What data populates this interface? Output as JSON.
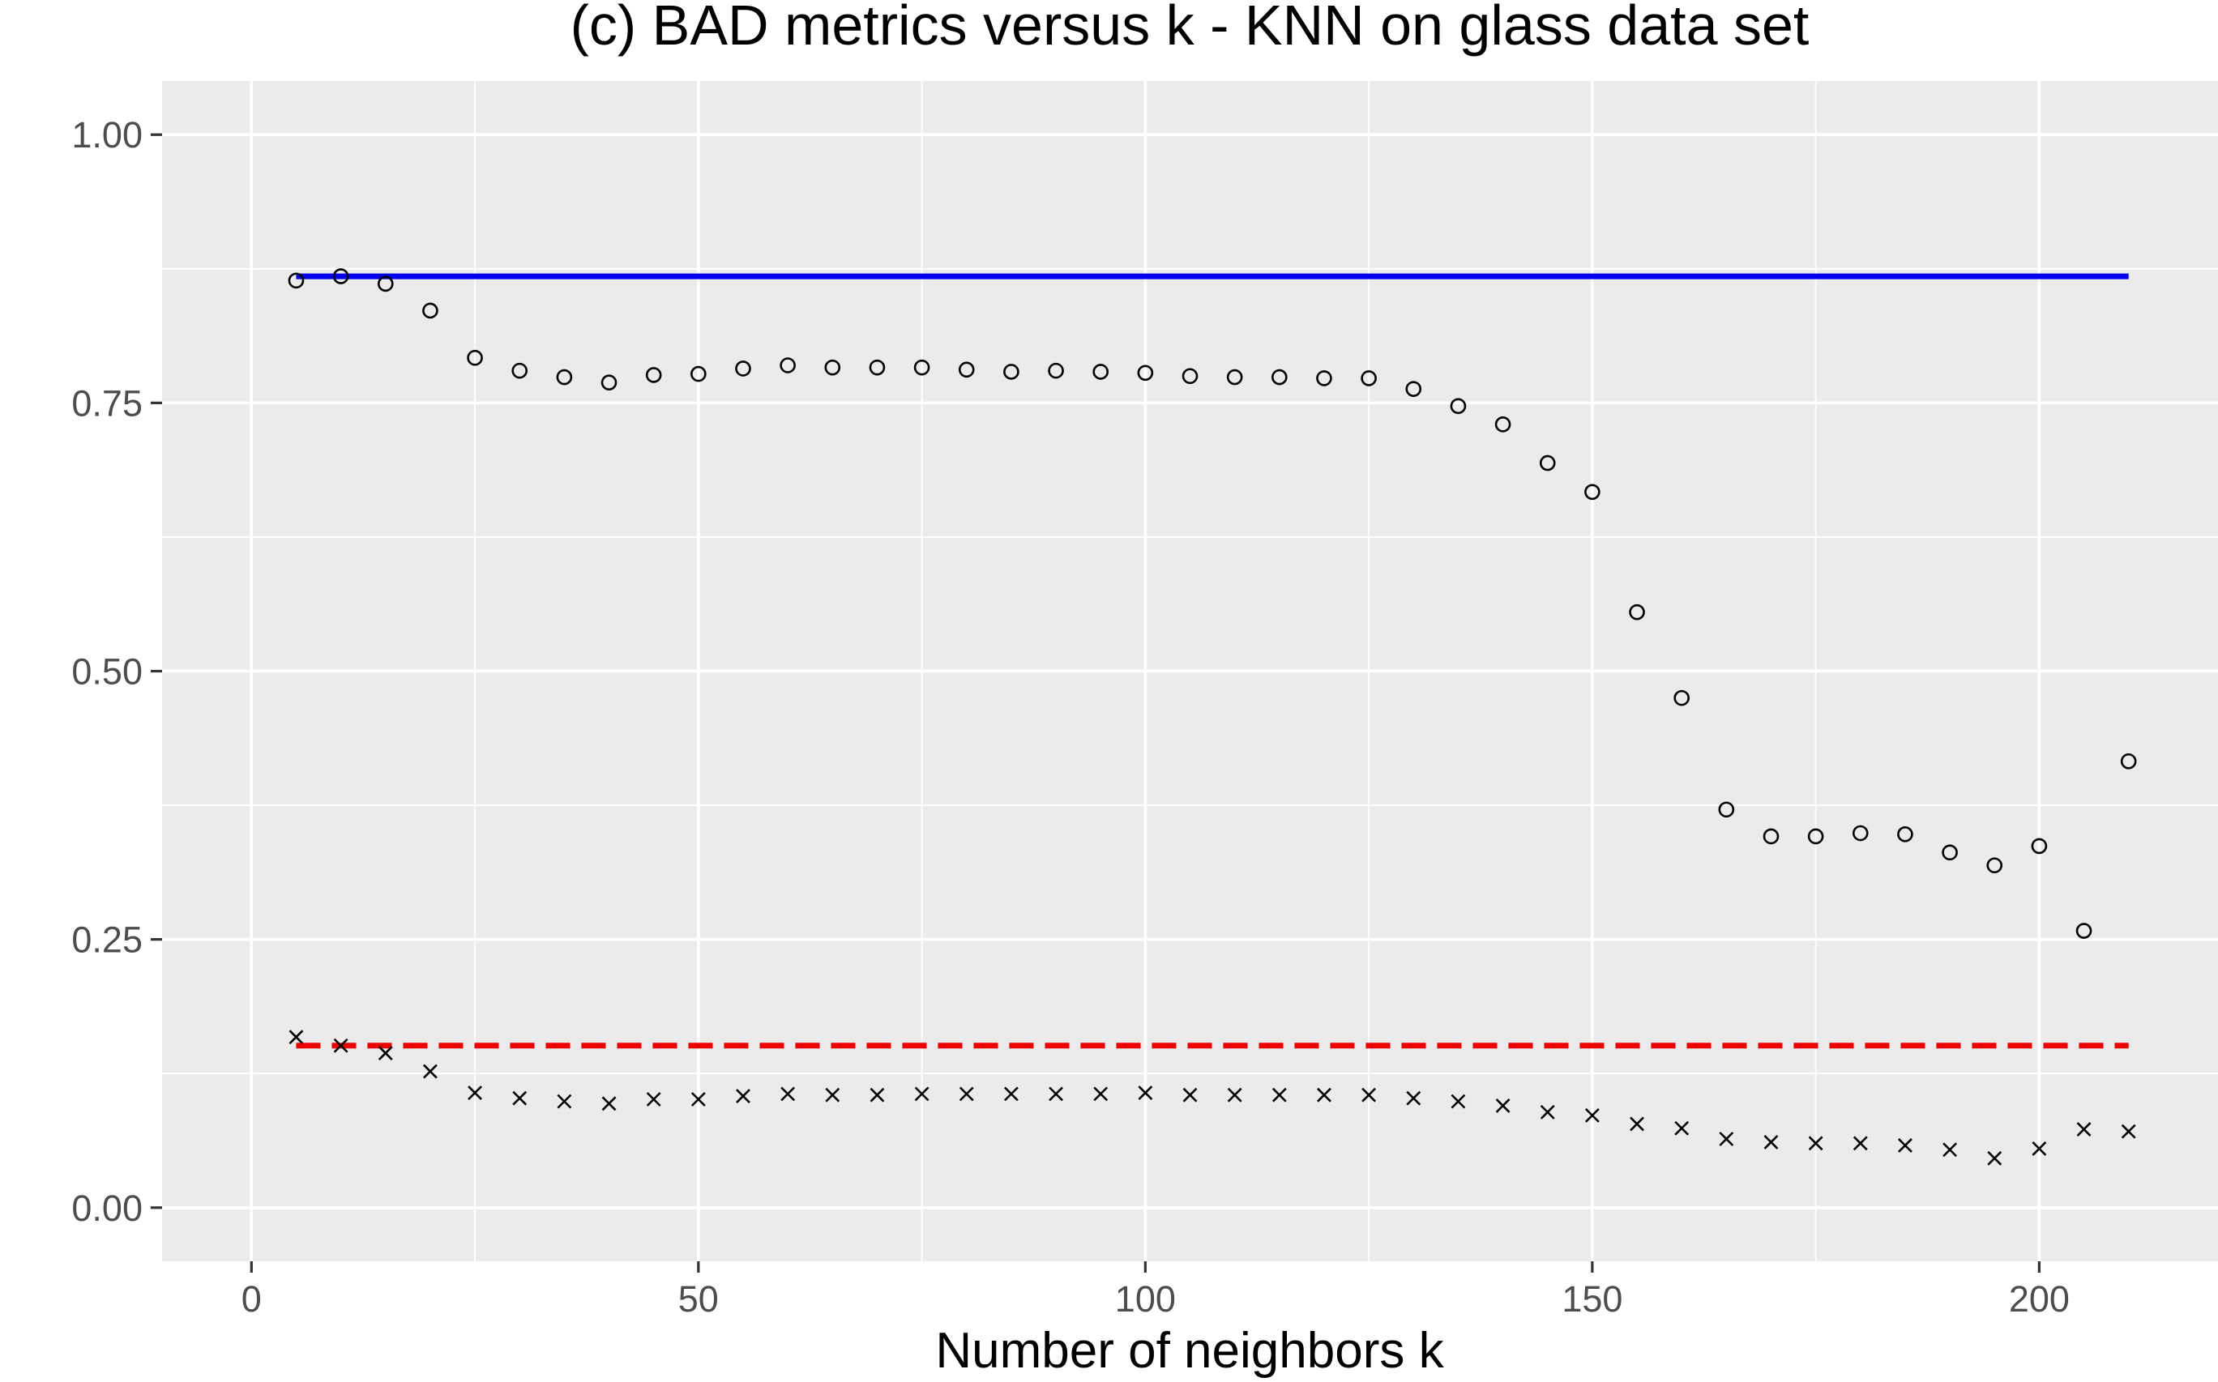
{
  "chart_data": {
    "type": "scatter",
    "title": "(c) BAD metrics versus k - KNN on glass data set",
    "xlabel": "Number of neighbors k",
    "ylabel": "",
    "xlim": [
      -10,
      220
    ],
    "ylim": [
      -0.05,
      1.05
    ],
    "x_ticks": [
      0,
      50,
      100,
      150,
      200
    ],
    "x_tick_labels": [
      "0",
      "50",
      "100",
      "150",
      "200"
    ],
    "y_ticks": [
      0,
      0.25,
      0.5,
      0.75,
      1
    ],
    "y_tick_labels": [
      "0.00",
      "0.25",
      "0.50",
      "0.75",
      "1.00"
    ],
    "grid": true,
    "legend": "none",
    "series": [
      {
        "marker": "circle",
        "color": "#000000",
        "x": [
          5,
          10,
          15,
          20,
          25,
          30,
          35,
          40,
          45,
          50,
          55,
          60,
          65,
          70,
          75,
          80,
          85,
          90,
          95,
          100,
          105,
          110,
          115,
          120,
          125,
          130,
          135,
          140,
          145,
          150,
          155,
          160,
          165,
          170,
          175,
          180,
          185,
          190,
          195,
          200,
          205,
          210
        ],
        "y": [
          0.864,
          0.868,
          0.861,
          0.836,
          0.792,
          0.78,
          0.774,
          0.769,
          0.776,
          0.777,
          0.782,
          0.785,
          0.783,
          0.783,
          0.783,
          0.781,
          0.779,
          0.78,
          0.779,
          0.778,
          0.775,
          0.774,
          0.774,
          0.773,
          0.773,
          0.763,
          0.747,
          0.73,
          0.694,
          0.667,
          0.555,
          0.475,
          0.371,
          0.346,
          0.346,
          0.349,
          0.348,
          0.331,
          0.319,
          0.337,
          0.258,
          0.416
        ]
      },
      {
        "marker": "cross",
        "color": "#000000",
        "x": [
          5,
          10,
          15,
          20,
          25,
          30,
          35,
          40,
          45,
          50,
          55,
          60,
          65,
          70,
          75,
          80,
          85,
          90,
          95,
          100,
          105,
          110,
          115,
          120,
          125,
          130,
          135,
          140,
          145,
          150,
          155,
          160,
          165,
          170,
          175,
          180,
          185,
          190,
          195,
          200,
          205,
          210
        ],
        "y": [
          0.159,
          0.151,
          0.144,
          0.127,
          0.107,
          0.102,
          0.099,
          0.097,
          0.101,
          0.101,
          0.104,
          0.106,
          0.105,
          0.105,
          0.106,
          0.106,
          0.106,
          0.106,
          0.106,
          0.107,
          0.105,
          0.105,
          0.105,
          0.105,
          0.105,
          0.102,
          0.099,
          0.095,
          0.089,
          0.086,
          0.078,
          0.074,
          0.064,
          0.061,
          0.06,
          0.06,
          0.058,
          0.054,
          0.046,
          0.055,
          0.073,
          0.071
        ]
      }
    ],
    "reference_lines": [
      {
        "style": "solid",
        "color": "#0000ee",
        "x": [
          5,
          210
        ],
        "y": 0.868
      },
      {
        "style": "dashed",
        "color": "#ee0000",
        "x": [
          5,
          210
        ],
        "y": 0.151
      }
    ]
  },
  "colors": {
    "panel_background": "#ebebeb",
    "grid_line": "#ffffff",
    "tick_text": "#4d4d4d",
    "tick_mark": "#333333"
  }
}
